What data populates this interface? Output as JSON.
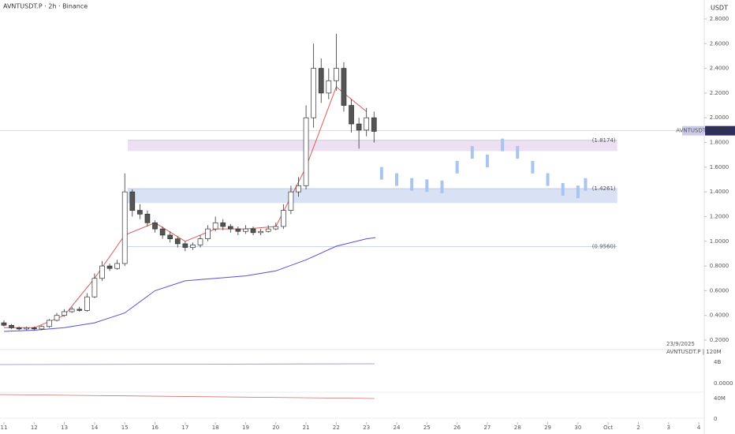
{
  "header": {
    "title": "AVNTUSDT.P · 2h · Binance",
    "currency": "USDT"
  },
  "chart_data": {
    "type": "candlestick",
    "x": [
      11,
      11.25,
      11.5,
      11.75,
      12,
      12.25,
      12.5,
      12.75,
      13,
      13.25,
      13.5,
      13.75,
      14,
      14.25,
      14.5,
      14.75,
      15,
      15.25,
      15.5,
      15.75,
      16,
      16.25,
      16.5,
      16.75,
      17,
      17.25,
      17.5,
      17.75,
      18,
      18.25,
      18.5,
      18.75,
      19,
      19.25,
      19.5,
      19.75,
      20,
      20.25,
      20.5,
      20.75,
      21,
      21.25,
      21.5,
      21.75,
      22,
      22.25,
      22.5,
      22.75,
      23,
      23.25
    ],
    "open": [
      0.34,
      0.32,
      0.3,
      0.29,
      0.3,
      0.29,
      0.31,
      0.36,
      0.4,
      0.43,
      0.45,
      0.44,
      0.55,
      0.7,
      0.8,
      0.78,
      0.82,
      1.4,
      1.25,
      1.22,
      1.15,
      1.1,
      1.05,
      1.02,
      0.98,
      0.95,
      0.97,
      1.02,
      1.1,
      1.15,
      1.12,
      1.1,
      1.08,
      1.1,
      1.07,
      1.08,
      1.1,
      1.12,
      1.25,
      1.4,
      1.45,
      2.0,
      2.4,
      2.2,
      2.3,
      2.4,
      2.1,
      1.95,
      1.9,
      2.0
    ],
    "high": [
      0.36,
      0.33,
      0.31,
      0.31,
      0.31,
      0.32,
      0.37,
      0.42,
      0.45,
      0.47,
      0.47,
      0.58,
      0.74,
      0.84,
      0.82,
      0.85,
      1.55,
      1.42,
      1.3,
      1.25,
      1.17,
      1.12,
      1.08,
      1.04,
      1.0,
      0.99,
      1.05,
      1.13,
      1.2,
      1.18,
      1.14,
      1.12,
      1.13,
      1.12,
      1.1,
      1.13,
      1.15,
      1.3,
      1.45,
      1.52,
      2.1,
      2.6,
      2.48,
      2.4,
      2.68,
      2.45,
      2.15,
      2.0,
      2.08,
      2.05
    ],
    "low": [
      0.31,
      0.29,
      0.28,
      0.28,
      0.28,
      0.28,
      0.3,
      0.35,
      0.39,
      0.42,
      0.43,
      0.43,
      0.54,
      0.68,
      0.76,
      0.77,
      0.8,
      1.2,
      1.18,
      1.12,
      1.07,
      1.02,
      0.99,
      0.95,
      0.92,
      0.93,
      0.95,
      1.0,
      1.08,
      1.09,
      1.07,
      1.05,
      1.06,
      1.05,
      1.05,
      1.07,
      1.09,
      1.1,
      1.22,
      1.36,
      1.42,
      1.92,
      2.12,
      2.15,
      2.22,
      2.05,
      1.88,
      1.75,
      1.85,
      1.8
    ],
    "close": [
      0.32,
      0.3,
      0.29,
      0.3,
      0.29,
      0.31,
      0.36,
      0.4,
      0.43,
      0.45,
      0.44,
      0.55,
      0.7,
      0.8,
      0.78,
      0.82,
      1.4,
      1.25,
      1.22,
      1.15,
      1.1,
      1.05,
      1.02,
      0.98,
      0.95,
      0.97,
      1.02,
      1.1,
      1.15,
      1.12,
      1.1,
      1.08,
      1.1,
      1.07,
      1.08,
      1.1,
      1.12,
      1.25,
      1.4,
      1.45,
      2.0,
      2.4,
      2.2,
      2.3,
      2.4,
      2.1,
      1.95,
      1.9,
      2.0,
      1.89
    ],
    "up_color": "#ffffff",
    "down_color": "#555555",
    "lines": [
      {
        "color": "#e05a5a",
        "x": [
          11,
          12,
          13,
          14,
          15,
          16,
          17,
          18,
          19,
          20,
          21,
          22,
          23
        ],
        "values": [
          0.3,
          0.3,
          0.4,
          0.7,
          1.05,
          1.15,
          1.0,
          1.1,
          1.1,
          1.12,
          1.6,
          2.25,
          2.05
        ]
      },
      {
        "color": "#5a4fd6",
        "x": [
          11,
          12,
          13,
          14,
          15,
          16,
          17,
          18,
          19,
          20,
          21,
          22,
          23,
          23.3
        ],
        "values": [
          0.27,
          0.28,
          0.3,
          0.34,
          0.42,
          0.6,
          0.68,
          0.7,
          0.72,
          0.76,
          0.85,
          0.96,
          1.02,
          1.03
        ]
      }
    ],
    "projection": {
      "color": "#a9c4f0",
      "x": [
        23.5,
        24,
        24.5,
        25,
        25.5,
        26,
        26.5,
        27,
        27.5,
        28,
        28.5,
        29,
        29.5,
        30,
        30.25
      ],
      "values": [
        1.55,
        1.5,
        1.46,
        1.45,
        1.44,
        1.6,
        1.72,
        1.65,
        1.78,
        1.72,
        1.6,
        1.5,
        1.42,
        1.4,
        1.46
      ]
    },
    "zones": [
      {
        "color": "#e9d8ef",
        "x": [
          15.1,
          31.3
        ],
        "values": [
          1.8174,
          1.73
        ]
      },
      {
        "color": "#cfd9f2",
        "x": [
          15.1,
          31.3
        ],
        "values": [
          1.4261,
          1.31
        ]
      }
    ],
    "levels": [
      {
        "value": 1.8174,
        "label": "(1.8174)"
      },
      {
        "value": 1.4261,
        "label": "(1.4261)"
      },
      {
        "value": 0.956,
        "label": "(0.9560)"
      }
    ],
    "last_price": {
      "value": 1.895,
      "label": "1.8950",
      "symbol": "AVNTUSDT.P"
    },
    "xlim": [
      10.87,
      34.18
    ],
    "xticks": [
      11,
      12,
      13,
      14,
      15,
      16,
      17,
      18,
      19,
      20,
      21,
      22,
      23,
      24,
      25,
      26,
      27,
      28,
      29,
      30,
      {
        "value": 31,
        "label": "Oct"
      },
      {
        "value": 32,
        "label": "2"
      },
      {
        "value": 33,
        "label": "3"
      },
      {
        "value": 34,
        "label": "4"
      }
    ],
    "ylim": [
      0.2,
      2.8
    ],
    "yticks": [
      {
        "value": 0.2,
        "label": "0.2000"
      },
      {
        "value": 0.4,
        "label": "0.4000"
      },
      {
        "value": 0.6,
        "label": "0.6000"
      },
      {
        "value": 0.8,
        "label": "0.8000"
      },
      {
        "value": 1.0,
        "label": "1.0000"
      },
      {
        "value": 1.2,
        "label": "1.2000"
      },
      {
        "value": 1.4,
        "label": "1.4000"
      },
      {
        "value": 1.6,
        "label": "1.6000"
      },
      {
        "value": 1.8,
        "label": "1.8000"
      },
      {
        "value": 2.0,
        "label": "2.0000"
      },
      {
        "value": 2.2,
        "label": "2.2000"
      },
      {
        "value": 2.4,
        "label": "2.4000"
      },
      {
        "value": 2.6,
        "label": "2.6000"
      },
      {
        "value": 2.8,
        "label": "2.8000"
      }
    ]
  },
  "info": {
    "date": "23/9/2025",
    "profile": "AVNTUSDT.P | 120M"
  },
  "panes": {
    "labels": [
      "4B",
      "0.0000",
      "40M",
      "0"
    ]
  }
}
